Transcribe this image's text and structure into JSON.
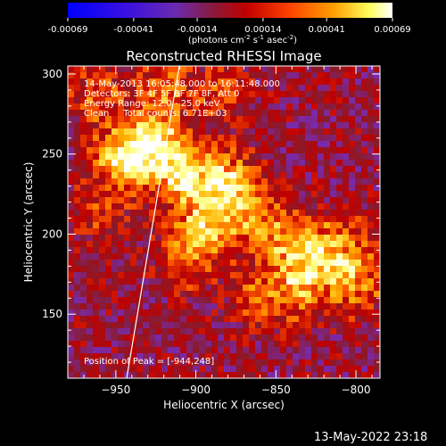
{
  "colorbar": {
    "ticks": [
      "-0.00069",
      "-0.00041",
      "-0.00014",
      "0.00014",
      "0.00041",
      "0.00069"
    ],
    "units_prefix": "(photons cm",
    "units_exp1": "-2",
    "units_mid1": " s",
    "units_exp2": "-1",
    "units_mid2": " asec",
    "units_exp3": "-2",
    "units_suffix": ")"
  },
  "plot": {
    "title": "Reconstructed RHESSI Image",
    "info_lines": [
      "14-May-2013 16:05:48.000 to 16:11:48.000",
      "Detectors: 3F 4F 5F 6F 7F 8F, Att 0",
      "Energy Range: 12.0 - 25.0 keV",
      "Clean     Total counts: 6.71E+03"
    ],
    "peak_label": "Position of Peak = [-944,248]",
    "footer": "13-May-2022 23:18"
  },
  "chart_data": {
    "type": "heatmap",
    "title": "Reconstructed RHESSI Image",
    "xlabel": "Heliocentric X (arcsec)",
    "ylabel": "Heliocentric Y (arcsec)",
    "xlim": [
      -980,
      -785
    ],
    "ylim": [
      110,
      305
    ],
    "xticks": [
      -950,
      -900,
      -850,
      -800
    ],
    "yticks": [
      150,
      200,
      250,
      300
    ],
    "colorbar_range": [
      -0.00069,
      0.00069
    ],
    "peak": [
      -944,
      248
    ],
    "colors": {
      "scale": [
        "#0000ff",
        "#5a1fd0",
        "#7a2aa8",
        "#8a1a2a",
        "#c00000",
        "#ff5a00",
        "#ffb000",
        "#ffff80",
        "#ffffff"
      ],
      "background": "#000000",
      "foreground": "#ffffff"
    },
    "bright_regions": [
      {
        "x": -925,
        "y": 255,
        "w": 0.00069
      },
      {
        "x": -905,
        "y": 235,
        "w": 0.0006
      },
      {
        "x": -945,
        "y": 248,
        "w": 0.0006
      },
      {
        "x": -880,
        "y": 235,
        "w": 0.00045
      },
      {
        "x": -870,
        "y": 215,
        "w": 0.00035
      },
      {
        "x": -895,
        "y": 205,
        "w": 0.00045
      },
      {
        "x": -905,
        "y": 185,
        "w": 0.00035
      },
      {
        "x": -850,
        "y": 200,
        "w": 0.00035
      },
      {
        "x": -830,
        "y": 185,
        "w": 0.00045
      },
      {
        "x": -810,
        "y": 195,
        "w": 0.00035
      },
      {
        "x": -800,
        "y": 170,
        "w": 0.00045
      },
      {
        "x": -835,
        "y": 165,
        "w": 0.00035
      },
      {
        "x": -860,
        "y": 160,
        "w": 0.0003
      },
      {
        "x": -920,
        "y": 290,
        "w": 0.00035
      },
      {
        "x": -960,
        "y": 285,
        "w": 0.0003
      },
      {
        "x": -960,
        "y": 215,
        "w": 0.00025
      },
      {
        "x": -885,
        "y": 290,
        "w": 0.00025
      }
    ]
  }
}
